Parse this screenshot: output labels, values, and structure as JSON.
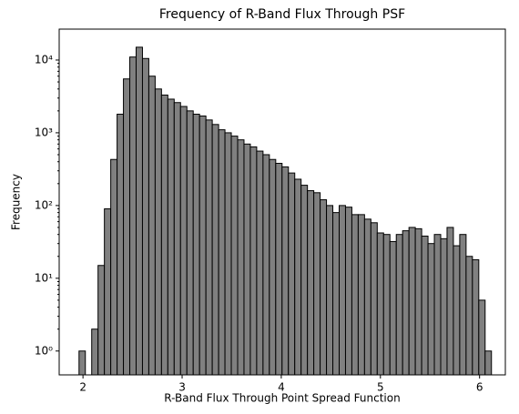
{
  "chart_data": {
    "type": "histogram",
    "title": "Frequency of R-Band Flux Through PSF",
    "x_label": "R-Band Flux Through Point Spread Function",
    "y_label": "Frequency",
    "bins": [
      1.96,
      2.024,
      2.088,
      2.152,
      2.216,
      2.28,
      2.344,
      2.408,
      2.472,
      2.536,
      2.6,
      2.664,
      2.728,
      2.792,
      2.856,
      2.92,
      2.984,
      3.048,
      3.112,
      3.176,
      3.24,
      3.304,
      3.368,
      3.432,
      3.496,
      3.56,
      3.624,
      3.688,
      3.752,
      3.816,
      3.88,
      3.944,
      4.008,
      4.072,
      4.136,
      4.2,
      4.264,
      4.328,
      4.392,
      4.456,
      4.52,
      4.584,
      4.648,
      4.712,
      4.776,
      4.84,
      4.904,
      4.968,
      5.032,
      5.096,
      5.16,
      5.224,
      5.288,
      5.352,
      5.416,
      5.48,
      5.544,
      5.608,
      5.672,
      5.736,
      5.8,
      5.864,
      5.928,
      5.992,
      6.056,
      6.12
    ],
    "values": [
      1,
      0,
      2,
      15,
      90,
      430,
      1800,
      5500,
      11000,
      15000,
      10500,
      6000,
      4000,
      3300,
      2900,
      2600,
      2300,
      2000,
      1800,
      1700,
      1500,
      1300,
      1100,
      1000,
      900,
      800,
      700,
      640,
      560,
      500,
      430,
      380,
      340,
      280,
      230,
      190,
      160,
      150,
      120,
      100,
      80,
      100,
      95,
      75,
      75,
      65,
      58,
      42,
      40,
      32,
      40,
      45,
      50,
      48,
      38,
      30,
      40,
      35,
      50,
      28,
      40,
      20,
      18,
      5,
      1
    ],
    "color": "#808080",
    "edge_color": "#000000",
    "y_scale": "log",
    "xlim": [
      1.76,
      6.26
    ],
    "ylim": [
      0.47,
      26600
    ],
    "xticks": [
      2,
      3,
      4,
      5,
      6
    ],
    "yticks": [
      {
        "value": 1,
        "label": "10⁰"
      },
      {
        "value": 10,
        "label": "10¹"
      },
      {
        "value": 100,
        "label": "10²"
      },
      {
        "value": 1000,
        "label": "10³"
      },
      {
        "value": 10000,
        "label": "10⁴"
      }
    ]
  }
}
